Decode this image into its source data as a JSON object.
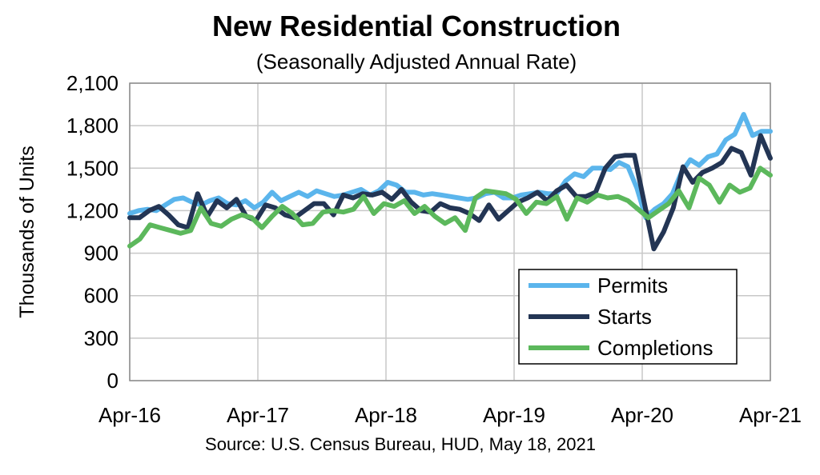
{
  "chart_data": {
    "type": "line",
    "title": "New Residential Construction",
    "subtitle": "(Seasonally Adjusted Annual Rate)",
    "ylabel": "Thousands of Units",
    "xlabel": "",
    "source": "Source:  U.S. Census Bureau, HUD, May 18, 2021",
    "ylim": [
      0,
      2100
    ],
    "yticks": [
      0,
      300,
      600,
      900,
      1200,
      1500,
      1800,
      2100
    ],
    "ytick_labels": [
      "0",
      "300",
      "600",
      "900",
      "1,200",
      "1,500",
      "1,800",
      "2,100"
    ],
    "x_tick_labels": [
      "Apr-16",
      "Apr-17",
      "Apr-18",
      "Apr-19",
      "Apr-20",
      "Apr-21"
    ],
    "x_start": "Apr-16",
    "x_end": "Apr-21",
    "grid": true,
    "legend_position": "lower-right",
    "series": [
      {
        "name": "Permits",
        "color": "#5BB5EC",
        "values": [
          1180,
          1200,
          1210,
          1200,
          1240,
          1280,
          1290,
          1260,
          1240,
          1270,
          1290,
          1250,
          1240,
          1270,
          1220,
          1260,
          1330,
          1270,
          1300,
          1330,
          1300,
          1340,
          1320,
          1300,
          1310,
          1330,
          1350,
          1310,
          1340,
          1400,
          1380,
          1330,
          1330,
          1310,
          1320,
          1310,
          1300,
          1290,
          1280,
          1290,
          1320,
          1330,
          1290,
          1290,
          1310,
          1320,
          1330,
          1320,
          1320,
          1410,
          1460,
          1440,
          1500,
          1500,
          1490,
          1540,
          1510,
          1360,
          1150,
          1210,
          1250,
          1320,
          1470,
          1560,
          1520,
          1580,
          1600,
          1700,
          1740,
          1880,
          1730,
          1760,
          1760
        ]
      },
      {
        "name": "Starts",
        "color": "#233554",
        "values": [
          1150,
          1150,
          1200,
          1230,
          1170,
          1100,
          1080,
          1320,
          1160,
          1270,
          1220,
          1280,
          1160,
          1130,
          1240,
          1220,
          1170,
          1150,
          1200,
          1250,
          1250,
          1170,
          1310,
          1290,
          1320,
          1310,
          1330,
          1280,
          1350,
          1260,
          1200,
          1190,
          1250,
          1220,
          1210,
          1180,
          1130,
          1240,
          1140,
          1200,
          1260,
          1290,
          1330,
          1270,
          1340,
          1380,
          1300,
          1300,
          1330,
          1500,
          1580,
          1590,
          1590,
          1260,
          930,
          1050,
          1220,
          1510,
          1400,
          1470,
          1500,
          1540,
          1640,
          1610,
          1450,
          1730,
          1570
        ]
      },
      {
        "name": "Completions",
        "color": "#5CB85C",
        "values": [
          950,
          1000,
          1100,
          1080,
          1060,
          1040,
          1060,
          1220,
          1110,
          1090,
          1140,
          1170,
          1150,
          1080,
          1160,
          1230,
          1180,
          1100,
          1110,
          1190,
          1200,
          1190,
          1210,
          1300,
          1180,
          1250,
          1230,
          1270,
          1180,
          1230,
          1160,
          1110,
          1150,
          1060,
          1290,
          1340,
          1330,
          1320,
          1280,
          1180,
          1260,
          1250,
          1300,
          1140,
          1290,
          1260,
          1310,
          1290,
          1300,
          1270,
          1210,
          1150,
          1200,
          1250,
          1340,
          1220,
          1430,
          1380,
          1260,
          1380,
          1330,
          1360,
          1500,
          1450
        ]
      }
    ]
  }
}
